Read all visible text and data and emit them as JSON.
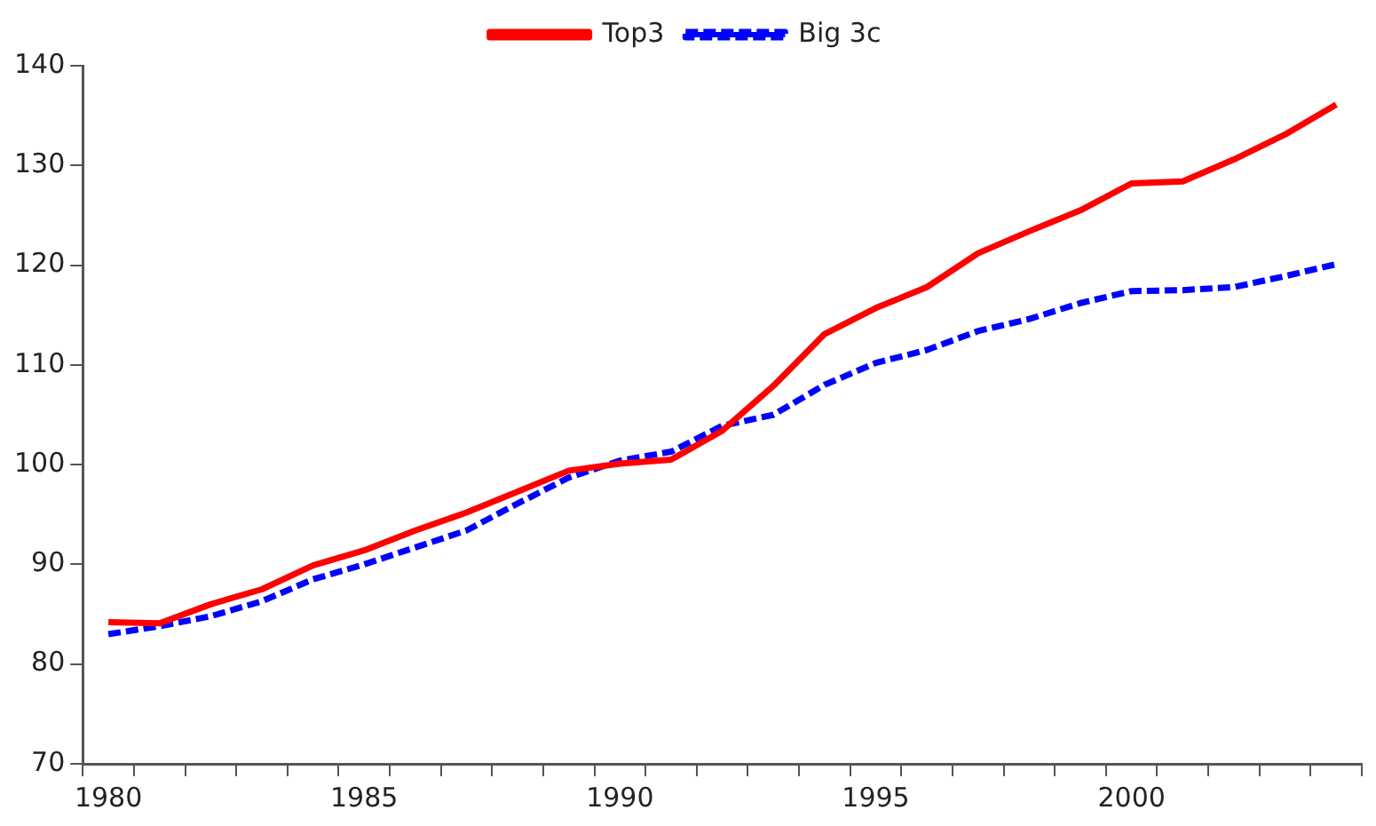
{
  "chart_data": {
    "type": "line",
    "categories": [
      "1980",
      null,
      null,
      null,
      null,
      "1985",
      null,
      null,
      null,
      null,
      "1990",
      null,
      null,
      null,
      null,
      "1995",
      null,
      null,
      null,
      null,
      "2000",
      null,
      null,
      null,
      null
    ],
    "series": [
      {
        "name": "Top3",
        "color": "#ff0000",
        "line_style": "solid",
        "values": [
          84.2,
          84.1,
          86.0,
          87.5,
          89.9,
          91.4,
          93.4,
          95.2,
          97.3,
          99.4,
          100.1,
          100.5,
          103.4,
          107.9,
          113.1,
          115.7,
          117.8,
          121.2,
          123.4,
          125.5,
          128.2,
          128.4,
          130.6,
          133.1,
          136.1
        ]
      },
      {
        "name": "Big 3c",
        "color": "#0000ff",
        "line_style": "dashed",
        "values": [
          83.0,
          83.8,
          84.8,
          86.3,
          88.5,
          90.0,
          91.7,
          93.4,
          96.1,
          98.7,
          100.4,
          101.3,
          103.9,
          105.0,
          108.0,
          110.2,
          111.5,
          113.4,
          114.6,
          116.2,
          117.4,
          117.5,
          117.8,
          118.9,
          120.1
        ]
      }
    ],
    "ylim": [
      70,
      140
    ],
    "yticks": [
      70,
      80,
      90,
      100,
      110,
      120,
      130,
      140
    ],
    "grid": false,
    "legend": "top",
    "marker": "none"
  }
}
